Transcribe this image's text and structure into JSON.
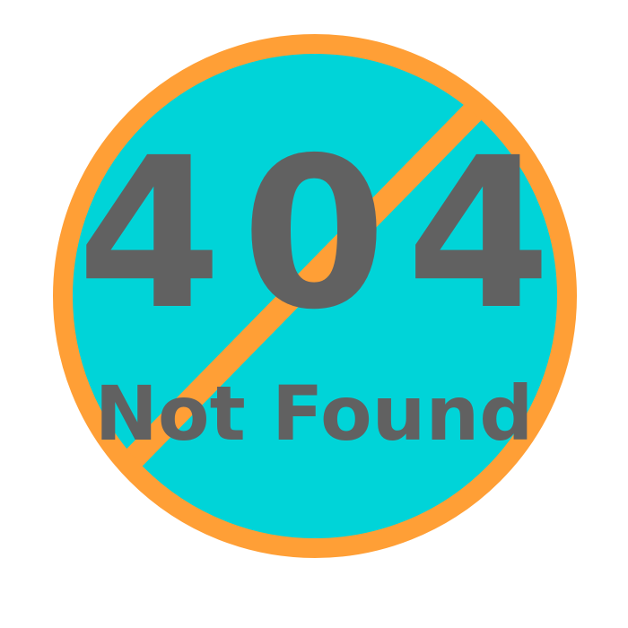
{
  "error": {
    "code": "404",
    "message": "Not Found"
  },
  "colors": {
    "background": "#ffffff",
    "circle_fill": "#00d4d8",
    "ring_and_slash": "#ff9f36",
    "text": "#616161"
  },
  "icon": "prohibited-sign-icon"
}
